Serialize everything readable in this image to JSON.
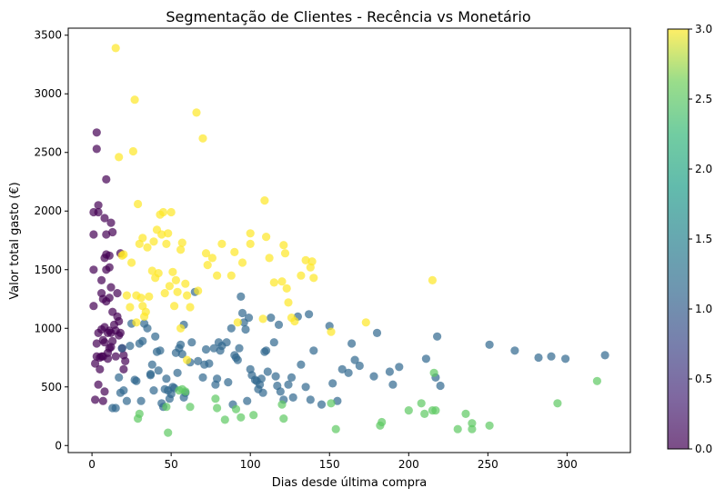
{
  "chart_data": {
    "type": "scatter",
    "title": "Segmentação de Clientes - Recência vs Monetário",
    "xlabel": "Dias desde última compra",
    "ylabel": "Valor total gasto (€)",
    "xlim": [
      -15,
      340
    ],
    "ylim": [
      -60,
      3560
    ],
    "x_ticks": [
      0,
      50,
      100,
      150,
      200,
      250,
      300
    ],
    "x_tick_labels": [
      "0",
      "50",
      "100",
      "150",
      "200",
      "250",
      "300"
    ],
    "y_ticks": [
      0,
      500,
      1000,
      1500,
      2000,
      2500,
      3000,
      3500
    ],
    "y_tick_labels": [
      "0",
      "500",
      "1000",
      "1500",
      "2000",
      "2500",
      "3000",
      "3500"
    ],
    "grid": false,
    "colormap": "viridis",
    "colorbar": {
      "min": 0.0,
      "max": 3.0,
      "ticks": [
        0.0,
        0.5,
        1.0,
        1.5,
        2.0,
        2.5,
        3.0
      ],
      "tick_labels": [
        "0.0",
        "0.5",
        "1.0",
        "1.5",
        "2.0",
        "2.5",
        "3.0"
      ]
    },
    "series": [
      {
        "cluster": 0,
        "color": "#440154",
        "points": [
          [
            1,
            1990
          ],
          [
            1,
            1800
          ],
          [
            1,
            1500
          ],
          [
            1,
            1190
          ],
          [
            2,
            700
          ],
          [
            2,
            390
          ],
          [
            3,
            2530
          ],
          [
            3,
            2670
          ],
          [
            4,
            1990
          ],
          [
            4,
            2050
          ],
          [
            3,
            760
          ],
          [
            3,
            870
          ],
          [
            4,
            960
          ],
          [
            4,
            520
          ],
          [
            5,
            750
          ],
          [
            5,
            650
          ],
          [
            6,
            1300
          ],
          [
            6,
            1410
          ],
          [
            6,
            990
          ],
          [
            6,
            760
          ],
          [
            7,
            1250
          ],
          [
            7,
            900
          ],
          [
            7,
            760
          ],
          [
            7,
            380
          ],
          [
            8,
            1940
          ],
          [
            8,
            1600
          ],
          [
            8,
            1010
          ],
          [
            8,
            880
          ],
          [
            8,
            460
          ],
          [
            9,
            2270
          ],
          [
            9,
            1800
          ],
          [
            9,
            1630
          ],
          [
            9,
            1500
          ],
          [
            9,
            1230
          ],
          [
            10,
            960
          ],
          [
            10,
            790
          ],
          [
            10,
            740
          ],
          [
            11,
            1620
          ],
          [
            11,
            1520
          ],
          [
            11,
            1260
          ],
          [
            11,
            980
          ],
          [
            11,
            830
          ],
          [
            12,
            1900
          ],
          [
            12,
            1350
          ],
          [
            12,
            960
          ],
          [
            12,
            840
          ],
          [
            13,
            1820
          ],
          [
            13,
            1140
          ],
          [
            13,
            890
          ],
          [
            14,
            1030
          ],
          [
            15,
            980
          ],
          [
            15,
            760
          ],
          [
            16,
            1300
          ],
          [
            16,
            1100
          ],
          [
            17,
            1060
          ],
          [
            17,
            940
          ],
          [
            18,
            1640
          ],
          [
            18,
            960
          ],
          [
            19,
            830
          ],
          [
            20,
            770
          ],
          [
            20,
            650
          ],
          [
            21,
            720
          ]
        ]
      },
      {
        "cluster": 1,
        "color": "#31688e",
        "points": [
          [
            13,
            320
          ],
          [
            15,
            320
          ],
          [
            17,
            580
          ],
          [
            18,
            450
          ],
          [
            19,
            830
          ],
          [
            20,
            470
          ],
          [
            22,
            380
          ],
          [
            24,
            850
          ],
          [
            25,
            1040
          ],
          [
            27,
            560
          ],
          [
            28,
            550
          ],
          [
            30,
            870
          ],
          [
            31,
            380
          ],
          [
            32,
            890
          ],
          [
            33,
            1040
          ],
          [
            35,
            1000
          ],
          [
            37,
            610
          ],
          [
            37,
            600
          ],
          [
            38,
            690
          ],
          [
            39,
            470
          ],
          [
            40,
            930
          ],
          [
            41,
            800
          ],
          [
            42,
            640
          ],
          [
            43,
            810
          ],
          [
            44,
            360
          ],
          [
            45,
            330
          ],
          [
            46,
            480
          ],
          [
            47,
            570
          ],
          [
            48,
            470
          ],
          [
            49,
            400
          ],
          [
            50,
            440
          ],
          [
            51,
            500
          ],
          [
            52,
            490
          ],
          [
            53,
            790
          ],
          [
            54,
            620
          ],
          [
            55,
            830
          ],
          [
            56,
            860
          ],
          [
            57,
            780
          ],
          [
            58,
            410
          ],
          [
            58,
            1030
          ],
          [
            59,
            450
          ],
          [
            62,
            710
          ],
          [
            63,
            880
          ],
          [
            65,
            1310
          ],
          [
            67,
            720
          ],
          [
            70,
            580
          ],
          [
            71,
            690
          ],
          [
            72,
            820
          ],
          [
            74,
            700
          ],
          [
            77,
            830
          ],
          [
            78,
            520
          ],
          [
            79,
            570
          ],
          [
            80,
            880
          ],
          [
            81,
            810
          ],
          [
            82,
            850
          ],
          [
            85,
            880
          ],
          [
            86,
            540
          ],
          [
            88,
            1000
          ],
          [
            89,
            350
          ],
          [
            90,
            770
          ],
          [
            91,
            750
          ],
          [
            92,
            730
          ],
          [
            93,
            830
          ],
          [
            94,
            1270
          ],
          [
            95,
            1130
          ],
          [
            96,
            1050
          ],
          [
            97,
            990
          ],
          [
            98,
            380
          ],
          [
            99,
            1090
          ],
          [
            100,
            650
          ],
          [
            101,
            600
          ],
          [
            103,
            560
          ],
          [
            104,
            550
          ],
          [
            105,
            480
          ],
          [
            106,
            520
          ],
          [
            107,
            570
          ],
          [
            108,
            450
          ],
          [
            109,
            800
          ],
          [
            110,
            810
          ],
          [
            111,
            630
          ],
          [
            113,
            1090
          ],
          [
            115,
            880
          ],
          [
            116,
            590
          ],
          [
            117,
            510
          ],
          [
            118,
            1030
          ],
          [
            119,
            460
          ],
          [
            121,
            390
          ],
          [
            124,
            520
          ],
          [
            126,
            580
          ],
          [
            127,
            410
          ],
          [
            130,
            1100
          ],
          [
            132,
            690
          ],
          [
            135,
            500
          ],
          [
            137,
            1120
          ],
          [
            138,
            390
          ],
          [
            140,
            810
          ],
          [
            145,
            350
          ],
          [
            150,
            1020
          ],
          [
            152,
            530
          ],
          [
            155,
            380
          ],
          [
            158,
            650
          ],
          [
            162,
            620
          ],
          [
            164,
            870
          ],
          [
            166,
            730
          ],
          [
            169,
            680
          ],
          [
            178,
            590
          ],
          [
            180,
            960
          ],
          [
            188,
            630
          ],
          [
            190,
            520
          ],
          [
            194,
            670
          ],
          [
            211,
            740
          ],
          [
            217,
            580
          ],
          [
            218,
            930
          ],
          [
            220,
            510
          ],
          [
            251,
            860
          ],
          [
            267,
            810
          ],
          [
            282,
            750
          ],
          [
            290,
            760
          ],
          [
            299,
            740
          ],
          [
            324,
            770
          ]
        ]
      },
      {
        "cluster": 2,
        "color": "#5ec962",
        "points": [
          [
            29,
            230
          ],
          [
            30,
            270
          ],
          [
            47,
            330
          ],
          [
            48,
            110
          ],
          [
            55,
            470
          ],
          [
            57,
            480
          ],
          [
            59,
            460
          ],
          [
            62,
            330
          ],
          [
            78,
            400
          ],
          [
            79,
            320
          ],
          [
            84,
            220
          ],
          [
            91,
            310
          ],
          [
            94,
            240
          ],
          [
            102,
            260
          ],
          [
            120,
            350
          ],
          [
            121,
            230
          ],
          [
            151,
            360
          ],
          [
            154,
            140
          ],
          [
            182,
            170
          ],
          [
            183,
            200
          ],
          [
            200,
            300
          ],
          [
            208,
            360
          ],
          [
            210,
            270
          ],
          [
            216,
            620
          ],
          [
            217,
            300
          ],
          [
            231,
            140
          ],
          [
            236,
            270
          ],
          [
            240,
            140
          ],
          [
            240,
            190
          ],
          [
            251,
            170
          ],
          [
            294,
            360
          ],
          [
            319,
            550
          ],
          [
            215,
            300
          ]
        ]
      },
      {
        "cluster": 3,
        "color": "#fde725",
        "points": [
          [
            15,
            3390
          ],
          [
            17,
            2460
          ],
          [
            19,
            1620
          ],
          [
            20,
            1630
          ],
          [
            22,
            1280
          ],
          [
            24,
            1180
          ],
          [
            25,
            1560
          ],
          [
            26,
            2510
          ],
          [
            27,
            2950
          ],
          [
            28,
            1280
          ],
          [
            28,
            1050
          ],
          [
            29,
            2060
          ],
          [
            30,
            1720
          ],
          [
            31,
            1260
          ],
          [
            32,
            1190
          ],
          [
            32,
            1770
          ],
          [
            33,
            1100
          ],
          [
            34,
            1140
          ],
          [
            35,
            1690
          ],
          [
            36,
            1270
          ],
          [
            38,
            1490
          ],
          [
            39,
            1740
          ],
          [
            40,
            1430
          ],
          [
            41,
            1840
          ],
          [
            42,
            1470
          ],
          [
            43,
            1970
          ],
          [
            44,
            1800
          ],
          [
            45,
            1990
          ],
          [
            46,
            1300
          ],
          [
            47,
            1720
          ],
          [
            48,
            1810
          ],
          [
            49,
            1360
          ],
          [
            50,
            1990
          ],
          [
            51,
            1480
          ],
          [
            52,
            1190
          ],
          [
            53,
            1410
          ],
          [
            54,
            1310
          ],
          [
            56,
            1670
          ],
          [
            57,
            1730
          ],
          [
            59,
            1380
          ],
          [
            60,
            1280
          ],
          [
            62,
            1180
          ],
          [
            66,
            2840
          ],
          [
            67,
            1320
          ],
          [
            70,
            2620
          ],
          [
            72,
            1640
          ],
          [
            73,
            1540
          ],
          [
            76,
            1600
          ],
          [
            79,
            1450
          ],
          [
            82,
            1720
          ],
          [
            88,
            1450
          ],
          [
            90,
            1650
          ],
          [
            92,
            1050
          ],
          [
            95,
            1560
          ],
          [
            100,
            1810
          ],
          [
            100,
            1720
          ],
          [
            108,
            1080
          ],
          [
            109,
            2090
          ],
          [
            110,
            1780
          ],
          [
            112,
            1600
          ],
          [
            115,
            1390
          ],
          [
            120,
            1400
          ],
          [
            121,
            1710
          ],
          [
            122,
            1640
          ],
          [
            123,
            1340
          ],
          [
            124,
            1220
          ],
          [
            126,
            1090
          ],
          [
            128,
            1060
          ],
          [
            132,
            1450
          ],
          [
            135,
            1580
          ],
          [
            138,
            1520
          ],
          [
            139,
            1570
          ],
          [
            151,
            970
          ],
          [
            173,
            1050
          ],
          [
            215,
            1410
          ],
          [
            140,
            1430
          ],
          [
            60,
            730
          ],
          [
            56,
            1000
          ]
        ]
      }
    ]
  }
}
